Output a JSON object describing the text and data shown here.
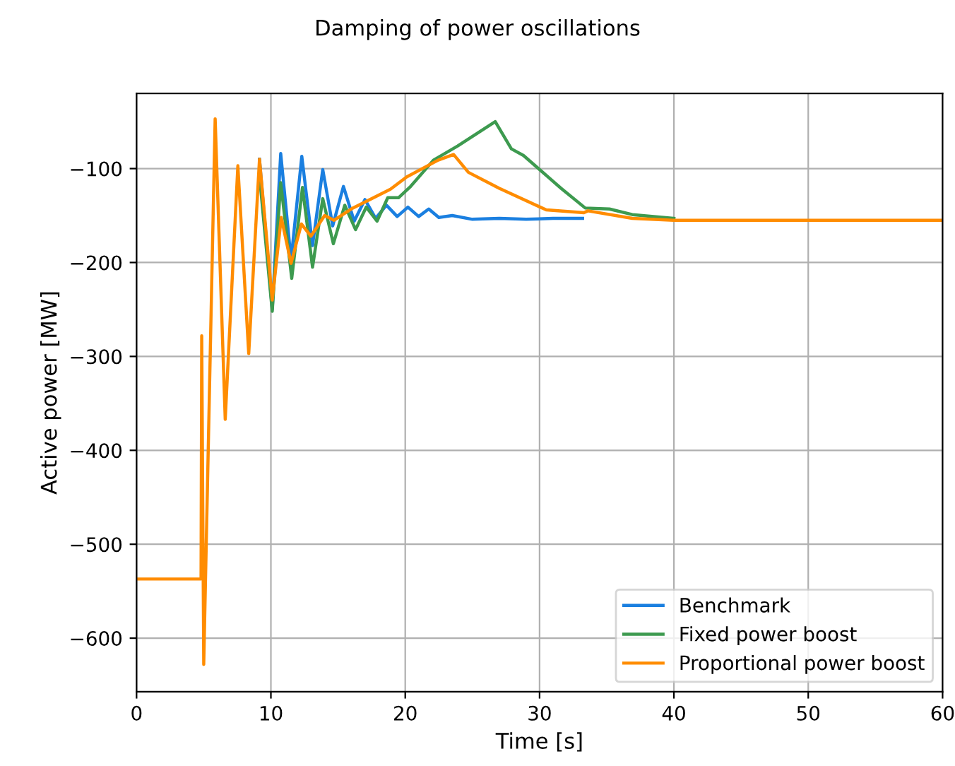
{
  "chart_data": {
    "type": "line",
    "title": "Damping of power oscillations",
    "xlabel": "Time [s]",
    "ylabel": "Active power [MW]",
    "xlim": [
      0,
      60
    ],
    "ylim": [
      -657,
      -20
    ],
    "xticks": [
      0,
      10,
      20,
      30,
      40,
      50,
      60
    ],
    "yticks": [
      {
        "value": -600,
        "label": "−600"
      },
      {
        "value": -500,
        "label": "−500"
      },
      {
        "value": -400,
        "label": "−400"
      },
      {
        "value": -300,
        "label": "−300"
      },
      {
        "value": -200,
        "label": "−200"
      },
      {
        "value": -100,
        "label": "−100"
      }
    ],
    "grid": true,
    "legend": "bottom right",
    "marker": "none",
    "line_style": "solid",
    "series": [
      {
        "name": "Benchmark",
        "color": "#1a7fe0",
        "x": [
          9.15,
          10.1,
          10.73,
          11.5,
          12.3,
          13.1,
          13.86,
          14.6,
          15.4,
          16.2,
          17.0,
          17.8,
          18.6,
          19.4,
          20.2,
          21.0,
          21.75,
          22.5,
          23.5,
          25,
          27,
          29,
          31,
          33.2
        ],
        "values": [
          -90,
          -250,
          -84,
          -197,
          -87,
          -182,
          -101,
          -161,
          -119,
          -156,
          -133,
          -153,
          -139,
          -151,
          -141,
          -151,
          -143,
          -152,
          -150,
          -154,
          -153,
          -154,
          -153,
          -153
        ]
      },
      {
        "name": "Fixed power boost",
        "color": "#3d9a4f",
        "x": [
          9.2,
          10.1,
          10.73,
          11.55,
          12.35,
          13.1,
          13.86,
          14.65,
          15.5,
          16.3,
          17.1,
          17.9,
          18.7,
          19.5,
          20.4,
          22.1,
          23.9,
          26.7,
          27.9,
          28.8,
          31.6,
          33.4,
          35.2,
          36.9,
          40
        ],
        "values": [
          -115,
          -252,
          -115,
          -217,
          -120,
          -205,
          -132,
          -180,
          -139,
          -165,
          -141,
          -156,
          -131,
          -131,
          -119,
          -91,
          -76,
          -50,
          -79,
          -86,
          -121,
          -142,
          -143,
          -149,
          -153
        ]
      },
      {
        "name": "Proportional power boost",
        "color": "#ff8c00",
        "x": [
          0,
          4.8,
          4.85,
          5.0,
          5.85,
          6.6,
          7.54,
          8.35,
          9.15,
          10.1,
          10.77,
          11.5,
          12.27,
          12.98,
          14.0,
          14.7,
          16.1,
          18.9,
          20.1,
          22.45,
          23.6,
          24.7,
          27.0,
          30.5,
          33.3,
          33.6,
          36.9,
          40,
          60
        ],
        "values": [
          -537,
          -537,
          -278,
          -628,
          -47,
          -367,
          -97,
          -297,
          -90,
          -240,
          -152,
          -201,
          -159,
          -172,
          -150,
          -155,
          -142,
          -122,
          -109,
          -91,
          -85,
          -104,
          -121,
          -144,
          -147,
          -145,
          -153,
          -155,
          -155
        ]
      }
    ]
  }
}
